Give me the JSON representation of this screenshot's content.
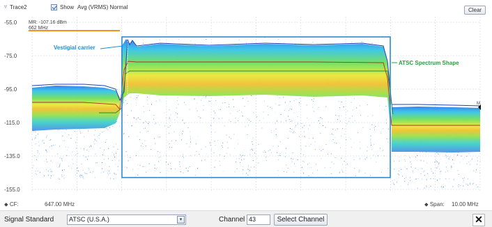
{
  "toolbar": {
    "trace_label": "Trace2",
    "show_label": "Show",
    "show_checked": true,
    "avg_label": "Avg (VRMS) Normal",
    "clear_label": "Clear"
  },
  "plot": {
    "y_ticks": [
      "-55.0",
      "-75.0",
      "-95.0",
      "-115.0",
      "-135.0",
      "-155.0"
    ],
    "marker_line1": "MR: -107.16 dBm",
    "marker_line2": "662 MHz",
    "annotation_vestigial": "Vestigial carrier",
    "annotation_atsc": "ATSC Spectrum Shape",
    "colors": {
      "annotation_blue": "#1a8fd6",
      "annotation_green": "#23a33a",
      "box_blue": "#2a8ad6",
      "marker_orange": "#f0901e",
      "trace_red": "#b0302a",
      "trace_green": "#2a8a2a"
    }
  },
  "footer": {
    "cf_label": "CF:",
    "cf_value": "647.00 MHz",
    "span_label": "Span:",
    "span_value": "10.00 MHz"
  },
  "bottom": {
    "signal_standard_label": "Signal Standard",
    "signal_standard_value": "ATSC (U.S.A.)",
    "channel_label": "Channel",
    "channel_value": "43",
    "select_channel_label": "Select Channel",
    "close_symbol": "✕"
  },
  "icons": {
    "trace_menu": "chevron-down-icon",
    "select_arrow": "dropdown-arrow-icon",
    "close": "close-icon"
  }
}
